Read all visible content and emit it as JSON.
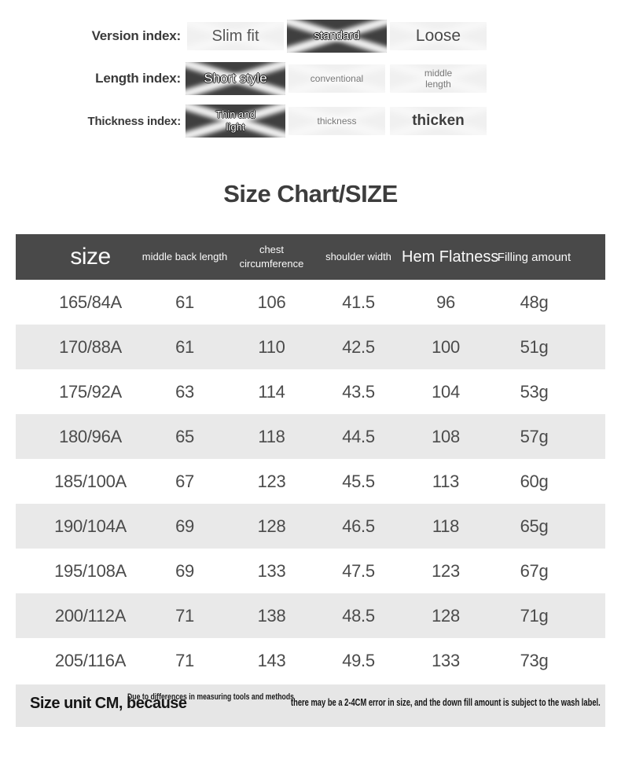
{
  "filters": {
    "rows": [
      {
        "label": "Version index:",
        "options": [
          {
            "text": "Slim fit",
            "selected": false,
            "variant": "lg",
            "wrap": false
          },
          {
            "text": "standard",
            "selected": true,
            "variant": "md",
            "wrap": false
          },
          {
            "text": "Loose",
            "selected": false,
            "variant": "xl",
            "wrap": false
          }
        ]
      },
      {
        "label": "Length index:",
        "options": [
          {
            "text": "Short style",
            "selected": true,
            "variant": "lg2",
            "wrap": false
          },
          {
            "text": "conventional",
            "selected": false,
            "variant": "sm",
            "wrap": false
          },
          {
            "text": "middle length",
            "selected": false,
            "variant": "sm",
            "wrap": true
          }
        ]
      },
      {
        "label": "Thickness index:",
        "options": [
          {
            "text": "Thin and light",
            "selected": true,
            "variant": "sm2",
            "wrap": true
          },
          {
            "text": "thickness",
            "selected": false,
            "variant": "sm",
            "wrap": false
          },
          {
            "text": "thicken",
            "selected": false,
            "variant": "bold",
            "wrap": false
          }
        ]
      }
    ]
  },
  "title": "Size Chart/SIZE",
  "chart_data": {
    "type": "table",
    "title": "Size Chart/SIZE",
    "columns": [
      "size",
      "middle back length",
      "chest circumference",
      "shoulder width",
      "Hem Flatness",
      "Filling amount"
    ],
    "rows": [
      [
        "165/84A",
        "61",
        "106",
        "41.5",
        "96",
        "48g"
      ],
      [
        "170/88A",
        "61",
        "110",
        "42.5",
        "100",
        "51g"
      ],
      [
        "175/92A",
        "63",
        "114",
        "43.5",
        "104",
        "53g"
      ],
      [
        "180/96A",
        "65",
        "118",
        "44.5",
        "108",
        "57g"
      ],
      [
        "185/100A",
        "67",
        "123",
        "45.5",
        "113",
        "60g"
      ],
      [
        "190/104A",
        "69",
        "128",
        "46.5",
        "118",
        "65g"
      ],
      [
        "195/108A",
        "69",
        "133",
        "47.5",
        "123",
        "67g"
      ],
      [
        "200/112A",
        "71",
        "138",
        "48.5",
        "128",
        "71g"
      ],
      [
        "205/116A",
        "71",
        "143",
        "49.5",
        "133",
        "73g"
      ]
    ],
    "units": "CM"
  },
  "footnote": {
    "big": "Size unit CM, because",
    "small": "Due to differences in measuring tools and methods",
    "main": "there may be a 2-4CM error in size, and the down fill amount is subject to the wash label."
  },
  "colors": {
    "header_bg": "#494949",
    "selected_chip_bg": "#3f3f3f",
    "chip_bg": "#f0f0f0",
    "alt_row_bg": "#e9e9e9",
    "footnote_bg": "#e6e6e6"
  }
}
